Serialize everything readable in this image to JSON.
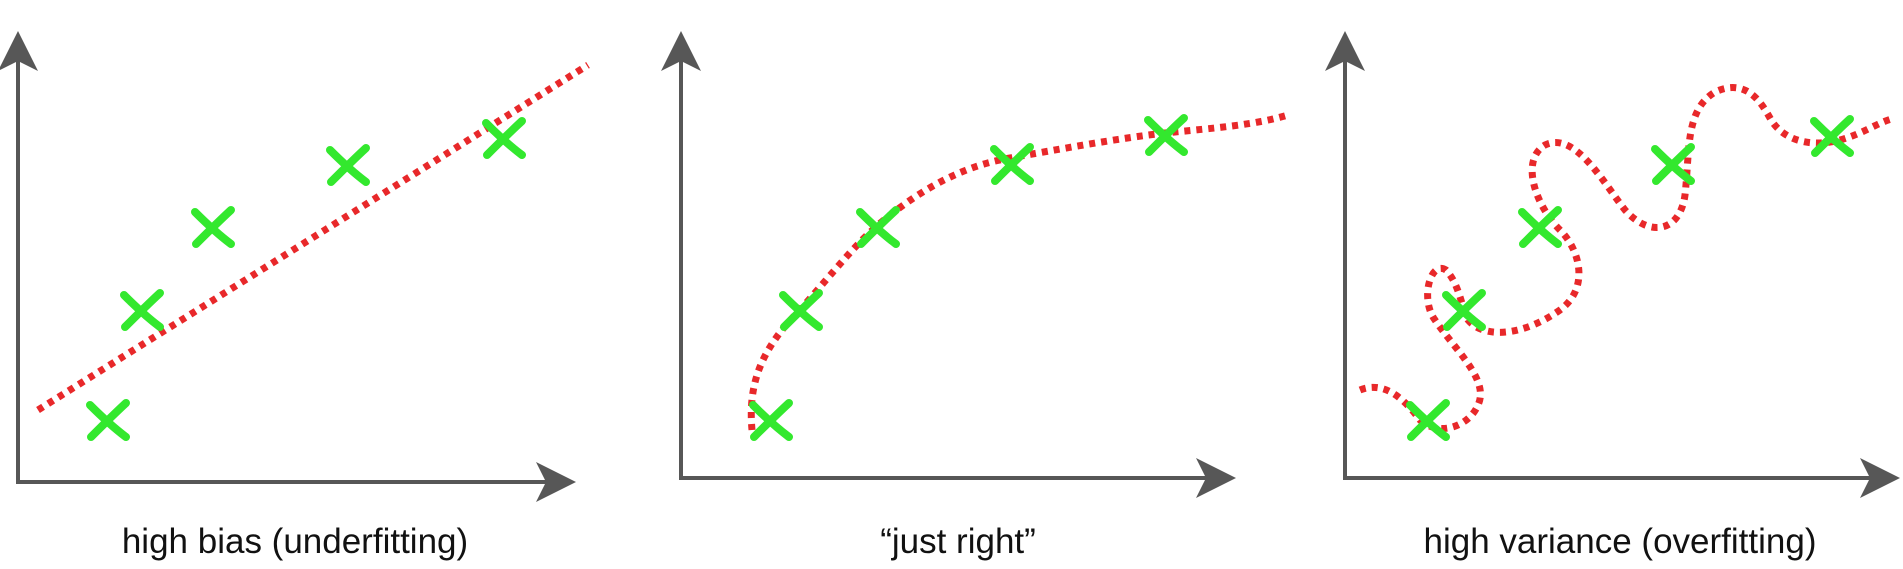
{
  "colors": {
    "axis": "#575757",
    "fit_curve": "#e8282a",
    "data_marker": "#33e82e",
    "caption": "#111111"
  },
  "icons": {
    "data_marker": "x-mark-icon",
    "axis_head": "arrowhead-icon"
  },
  "panels": [
    {
      "id": "underfit",
      "caption": "high bias (underfitting)",
      "fit_shape": "straight line"
    },
    {
      "id": "goodfit",
      "caption": "“just right”",
      "fit_shape": "smooth curve"
    },
    {
      "id": "overfit",
      "caption": "high variance (overfitting)",
      "fit_shape": "wiggly curve"
    }
  ]
}
